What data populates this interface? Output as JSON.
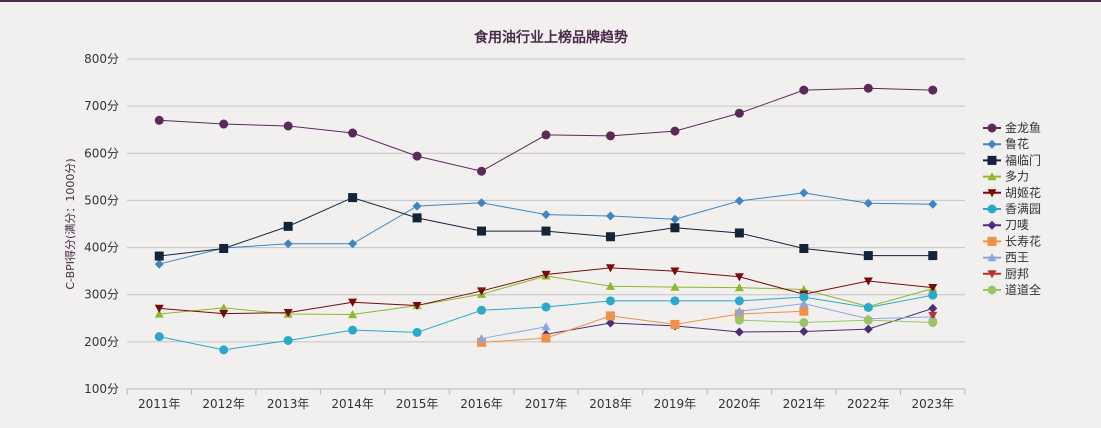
{
  "chart_data": {
    "type": "line",
    "title": "食用油行业上榜品牌趋势",
    "xlabel": "",
    "ylabel": "C-BPI得分(满分：1000分)",
    "ylim": [
      100,
      800
    ],
    "yticks": [
      "100分",
      "200分",
      "300分",
      "400分",
      "500分",
      "600分",
      "700分",
      "800分"
    ],
    "ytick_values": [
      100,
      200,
      300,
      400,
      500,
      600,
      700,
      800
    ],
    "grid": true,
    "legend_position": "right",
    "categories": [
      "2011年",
      "2012年",
      "2013年",
      "2014年",
      "2015年",
      "2016年",
      "2017年",
      "2018年",
      "2019年",
      "2020年",
      "2021年",
      "2022年",
      "2023年"
    ],
    "series": [
      {
        "name": "金龙鱼",
        "color": "#5b2a5b",
        "marker": "circle",
        "values": [
          670,
          662,
          658,
          643,
          594,
          562,
          639,
          637,
          647,
          685,
          734,
          738,
          734
        ]
      },
      {
        "name": "鲁花",
        "color": "#3d86c6",
        "marker": "diamond",
        "values": [
          365,
          399,
          408,
          408,
          488,
          495,
          470,
          467,
          460,
          499,
          516,
          494,
          492
        ]
      },
      {
        "name": "福临门",
        "color": "#13233a",
        "marker": "square",
        "values": [
          382,
          398,
          445,
          506,
          463,
          435,
          435,
          423,
          442,
          431,
          398,
          383,
          383
        ]
      },
      {
        "name": "多力",
        "color": "#8db72c",
        "marker": "triangle",
        "values": [
          259,
          272,
          259,
          258,
          277,
          301,
          340,
          318,
          316,
          315,
          311,
          275,
          313
        ]
      },
      {
        "name": "胡姬花",
        "color": "#7a0a0a",
        "marker": "triangle-down",
        "values": [
          271,
          260,
          262,
          284,
          277,
          308,
          343,
          357,
          350,
          338,
          301,
          329,
          315
        ]
      },
      {
        "name": "香满园",
        "color": "#2aa9c9",
        "marker": "circle",
        "values": [
          211,
          183,
          203,
          225,
          220,
          267,
          274,
          287,
          287,
          287,
          295,
          273,
          299
        ]
      },
      {
        "name": "刀唛",
        "color": "#4b2e7a",
        "marker": "diamond",
        "values": [
          null,
          null,
          null,
          null,
          null,
          null,
          216,
          240,
          234,
          221,
          222,
          227,
          271
        ]
      },
      {
        "name": "长寿花",
        "color": "#f0904a",
        "marker": "square",
        "values": [
          null,
          null,
          null,
          null,
          null,
          199,
          208,
          255,
          237,
          259,
          265,
          null,
          null
        ]
      },
      {
        "name": "西王",
        "color": "#8aa8de",
        "marker": "triangle",
        "values": [
          null,
          null,
          null,
          null,
          null,
          207,
          232,
          null,
          null,
          265,
          281,
          249,
          253
        ]
      },
      {
        "name": "厨邦",
        "color": "#c0302a",
        "marker": "triangle-down",
        "values": [
          null,
          null,
          null,
          null,
          null,
          null,
          null,
          null,
          null,
          null,
          null,
          null,
          256
        ]
      },
      {
        "name": "道道全",
        "color": "#9cc36a",
        "marker": "circle",
        "values": [
          null,
          null,
          null,
          null,
          null,
          null,
          null,
          null,
          null,
          246,
          241,
          246,
          241
        ]
      }
    ]
  }
}
